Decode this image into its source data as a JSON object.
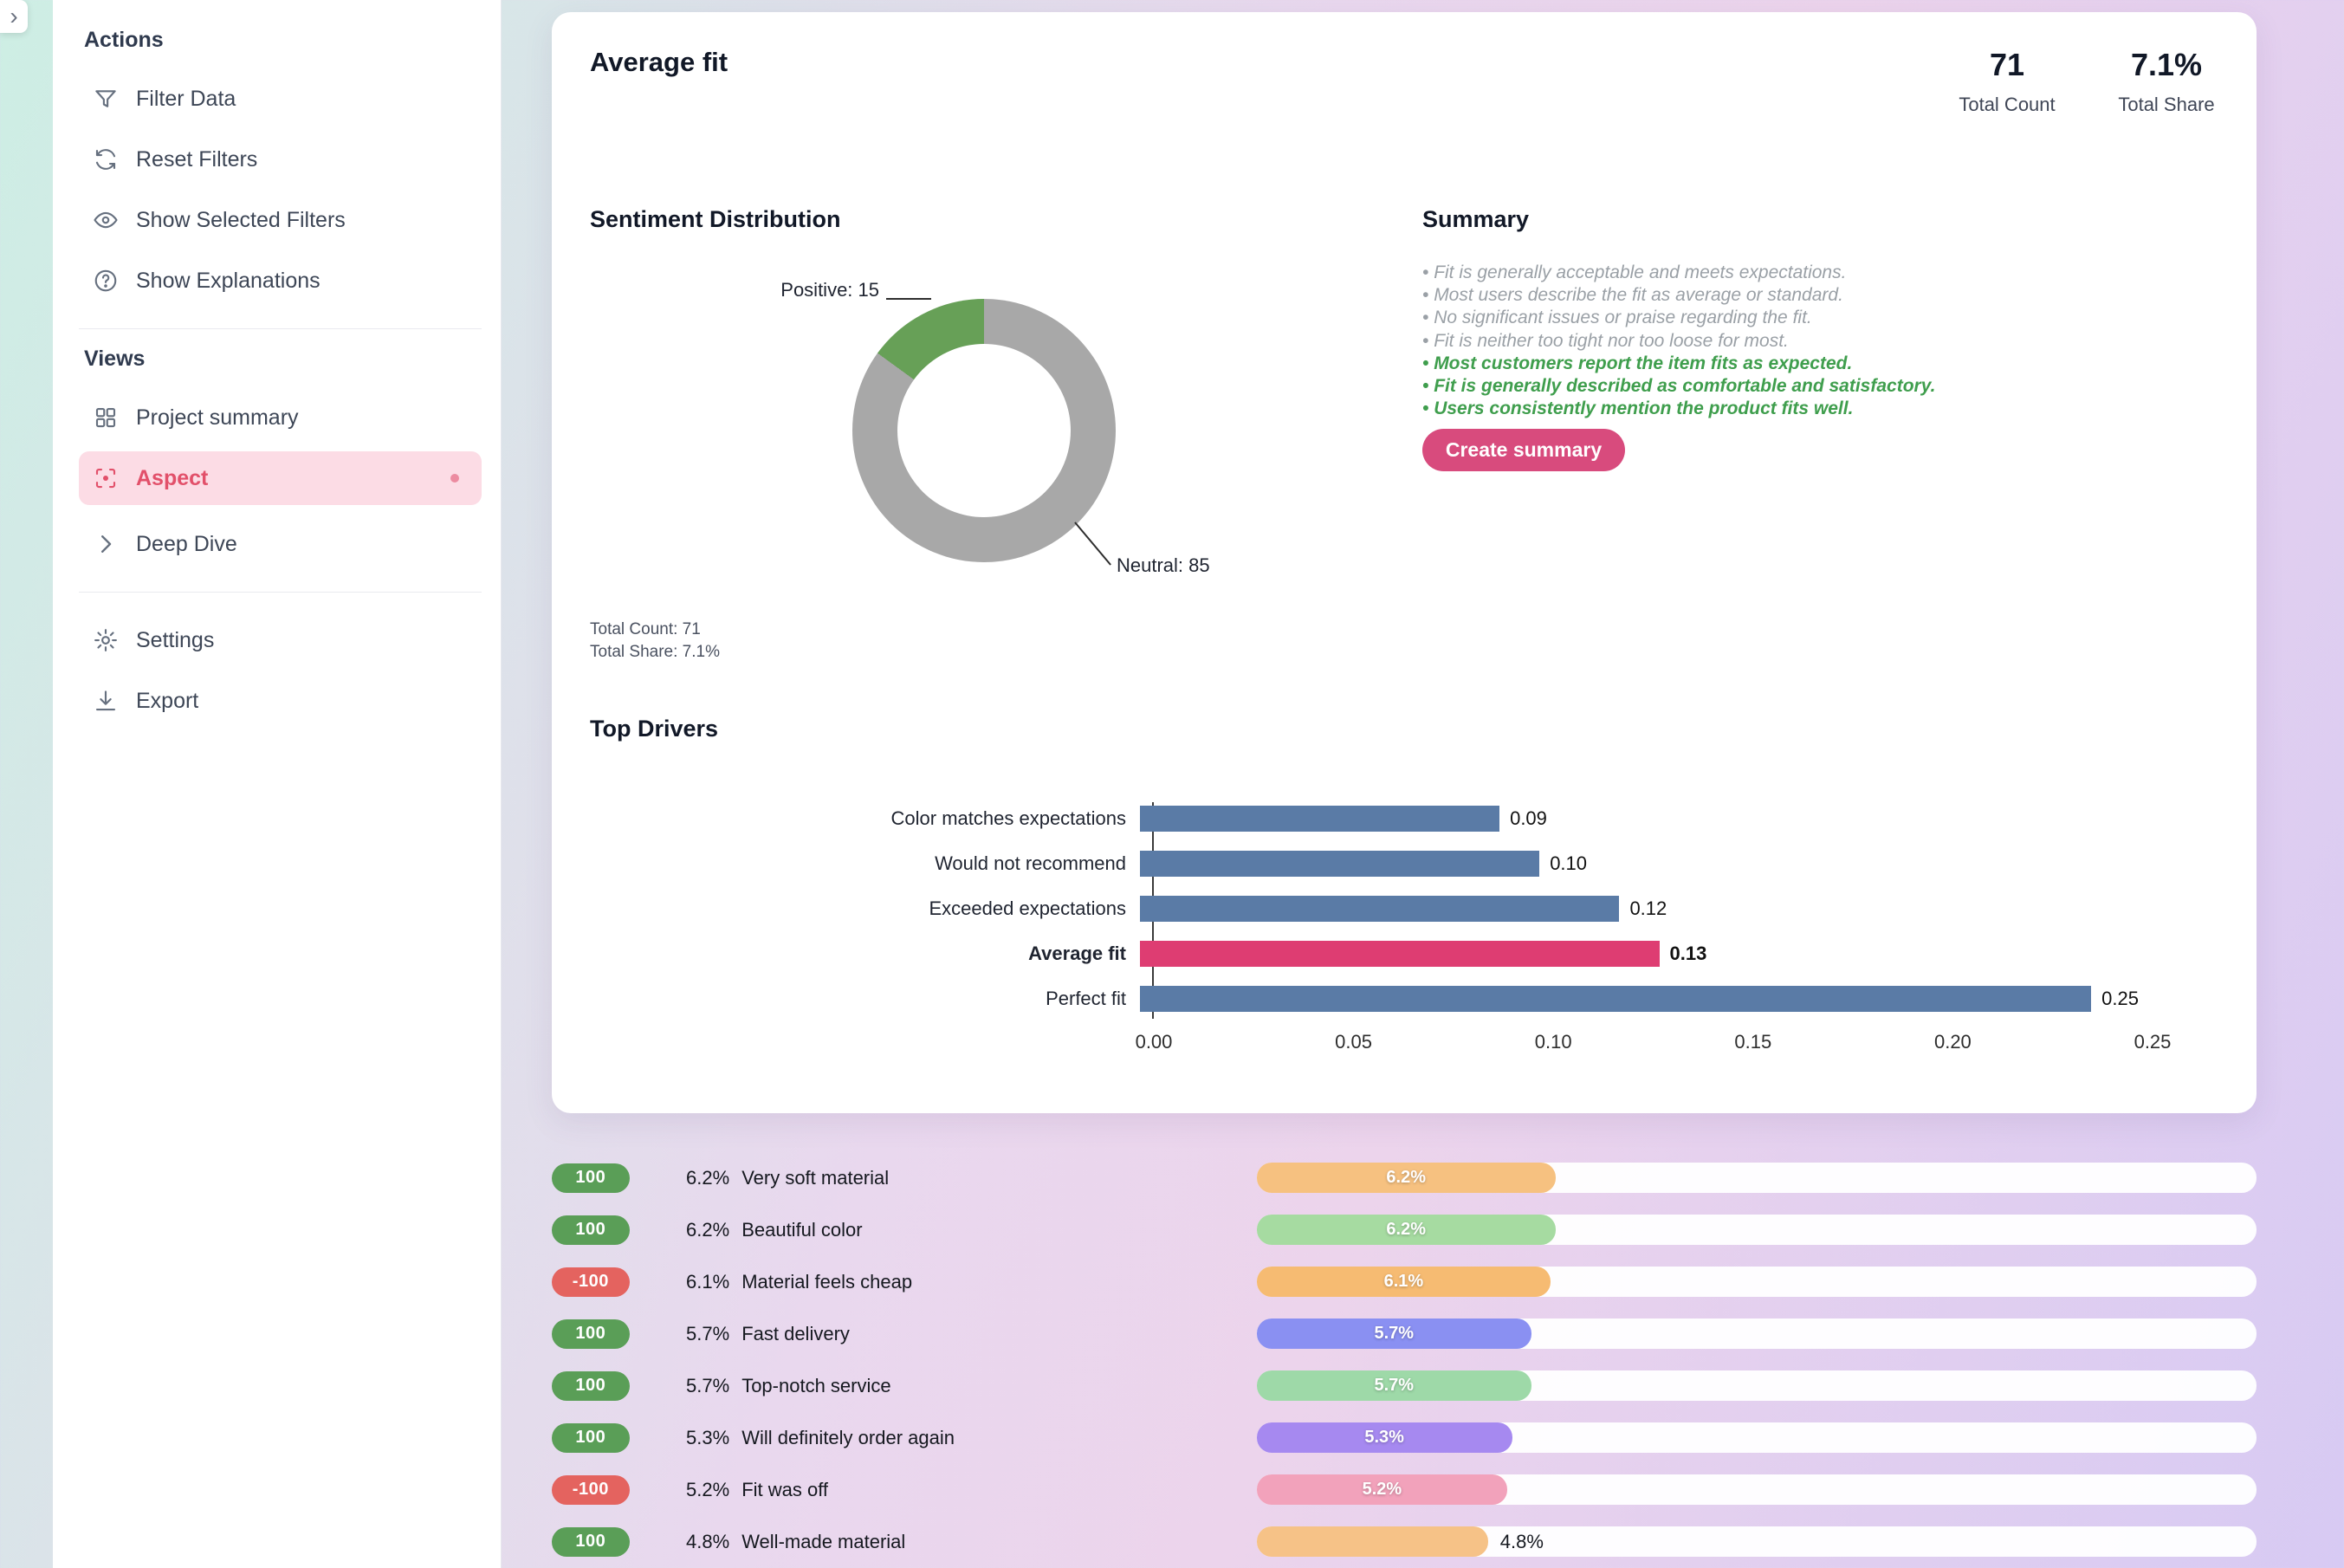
{
  "misc": {
    "collapse_glyph": "›"
  },
  "sidebar": {
    "actions_title": "Actions",
    "actions": [
      {
        "label": "Filter Data"
      },
      {
        "label": "Reset Filters"
      },
      {
        "label": "Show Selected Filters"
      },
      {
        "label": "Show Explanations"
      }
    ],
    "views_title": "Views",
    "views": [
      {
        "label": "Project summary"
      },
      {
        "label": "Aspect",
        "selected": true
      },
      {
        "label": "Deep Dive"
      }
    ],
    "footer": [
      {
        "label": "Settings"
      },
      {
        "label": "Export"
      }
    ]
  },
  "card": {
    "title": "Average fit",
    "stats": [
      {
        "value": "71",
        "label": "Total Count"
      },
      {
        "value": "7.1%",
        "label": "Total Share"
      }
    ]
  },
  "summary": {
    "title": "Summary",
    "neutral_bullets": [
      "Fit is generally acceptable and meets expectations.",
      "Most users describe the fit as average or standard.",
      "No significant issues or praise regarding the fit.",
      "Fit is neither too tight nor too loose for most."
    ],
    "positive_bullets": [
      "Most customers report the item fits as expected.",
      "Fit is generally described as comfortable and satisfactory.",
      "Users consistently mention the product fits well."
    ],
    "button_label": "Create summary",
    "neutral_color": "#9aa0a6",
    "positive_color": "#3f9e4d"
  },
  "chart_data": [
    {
      "type": "pie",
      "title": "Sentiment Distribution",
      "donut": true,
      "labels": [
        "Positive",
        "Neutral"
      ],
      "values": [
        15,
        85
      ],
      "colors": [
        "#67a057",
        "#a8a8a8"
      ],
      "callouts": [
        "Positive: 15",
        "Neutral: 85"
      ],
      "footer_lines": [
        "Total Count: 71",
        "Total Share: 7.1%"
      ]
    },
    {
      "type": "bar",
      "title": "Top Drivers",
      "orientation": "horizontal",
      "categories": [
        "Color matches expectations",
        "Would not recommend",
        "Exceeded expectations",
        "Average fit",
        "Perfect fit"
      ],
      "values": [
        0.09,
        0.1,
        0.12,
        0.13,
        0.25
      ],
      "value_labels": [
        "0.09",
        "0.10",
        "0.12",
        "0.13",
        "0.25"
      ],
      "highlight_index": 3,
      "bar_color": "#5a7ba6",
      "highlight_color": "#de3d72",
      "xlim": [
        0,
        0.25
      ],
      "x_ticks": [
        "0.00",
        "0.05",
        "0.10",
        "0.15",
        "0.20",
        "0.25"
      ],
      "grid": false,
      "legend": "none"
    },
    {
      "type": "bar",
      "name": "aspect-share-list",
      "orientation": "horizontal",
      "scale_max": 20.75,
      "rows": [
        {
          "sentiment_badge": "100",
          "badge_color": "#5a9e57",
          "share": "6.2%",
          "value": 6.2,
          "label": "Very soft material",
          "bar_color": "#f6c180",
          "value_label_inside": true
        },
        {
          "sentiment_badge": "100",
          "badge_color": "#5a9e57",
          "share": "6.2%",
          "value": 6.2,
          "label": "Beautiful color",
          "bar_color": "#a6dba1",
          "value_label_inside": true
        },
        {
          "sentiment_badge": "-100",
          "badge_color": "#e4635f",
          "share": "6.1%",
          "value": 6.1,
          "label": "Material feels cheap",
          "bar_color": "#f6bb72",
          "value_label_inside": true
        },
        {
          "sentiment_badge": "100",
          "badge_color": "#5a9e57",
          "share": "5.7%",
          "value": 5.7,
          "label": "Fast delivery",
          "bar_color": "#8a90f2",
          "value_label_inside": true
        },
        {
          "sentiment_badge": "100",
          "badge_color": "#5a9e57",
          "share": "5.7%",
          "value": 5.7,
          "label": "Top-notch service",
          "bar_color": "#9ed9a8",
          "value_label_inside": true
        },
        {
          "sentiment_badge": "100",
          "badge_color": "#5a9e57",
          "share": "5.3%",
          "value": 5.3,
          "label": "Will definitely order again",
          "bar_color": "#a689f0",
          "value_label_inside": true
        },
        {
          "sentiment_badge": "-100",
          "badge_color": "#e4635f",
          "share": "5.2%",
          "value": 5.2,
          "label": "Fit was off",
          "bar_color": "#f2a2bb",
          "value_label_inside": true
        },
        {
          "sentiment_badge": "100",
          "badge_color": "#5a9e57",
          "share": "4.8%",
          "value": 4.8,
          "label": "Well-made material",
          "bar_color": "#f6c287",
          "value_label_inside": false
        }
      ]
    }
  ]
}
